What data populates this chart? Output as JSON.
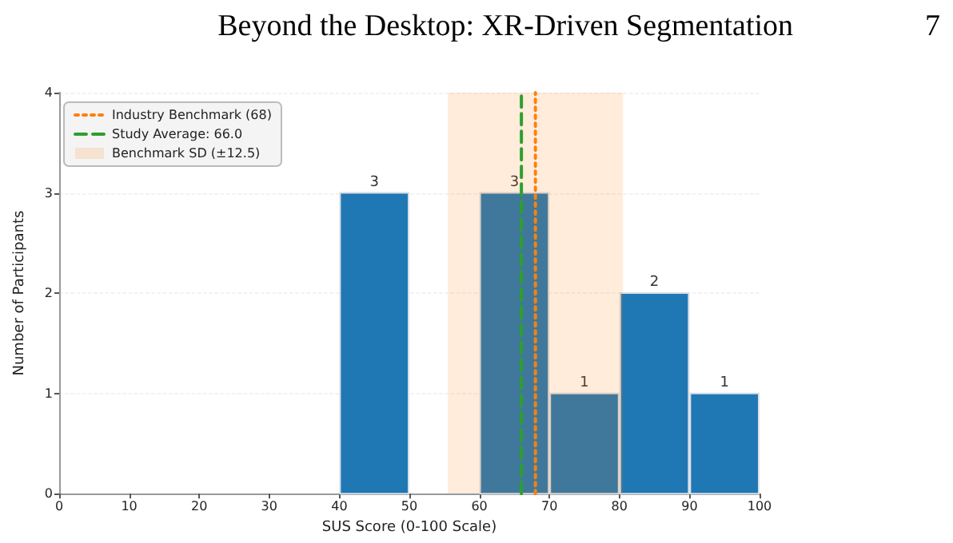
{
  "chart_data": {
    "type": "histogram",
    "annotations": [
      "Beyond the Desktop: XR-Driven Segmentation",
      "7"
    ],
    "xlabel": "SUS Score (0-100 Scale)",
    "ylabel": "Number of Participants",
    "bins": [
      0,
      10,
      20,
      30,
      40,
      50,
      60,
      70,
      80,
      90,
      100
    ],
    "series": [
      {
        "color": "#1f77b4",
        "values": [
          0,
          0,
          0,
          0,
          3,
          0,
          3,
          1,
          2,
          1
        ],
        "value_labels": [
          null,
          null,
          null,
          null,
          "3",
          null,
          "3",
          "1",
          "2",
          "1"
        ]
      },
      {
        "type": "line",
        "name": "Industry Benchmark (68)",
        "color": "#ff7f0e",
        "line_style": "dotted",
        "x": [
          68,
          68
        ],
        "values": [
          0,
          4
        ]
      },
      {
        "type": "line",
        "name": "Study Average: 66.0",
        "color": "#2ca02c",
        "line_style": "dashed",
        "x": [
          66,
          66
        ],
        "values": [
          0,
          4
        ]
      },
      {
        "type": "area",
        "name": "Benchmark SD (±12.5)",
        "color": "#ff7f0e",
        "x": [
          55.5,
          80.5
        ],
        "values": [
          4,
          4
        ]
      }
    ],
    "xlim": [
      0,
      100
    ],
    "xticks": [
      0,
      10,
      20,
      30,
      40,
      50,
      60,
      70,
      80,
      90,
      100
    ],
    "ylim": [
      0,
      4
    ],
    "yticks": [
      0,
      1,
      2,
      3,
      4
    ],
    "grid": "y",
    "legend": "top left"
  }
}
